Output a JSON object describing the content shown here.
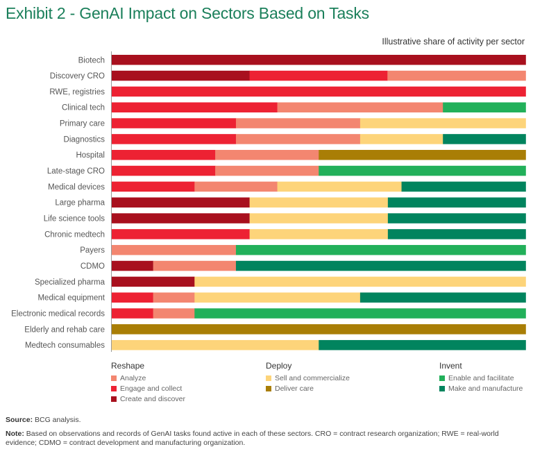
{
  "title": "Exhibit 2 - GenAI Impact on Sectors Based on Tasks",
  "subtitle": "Illustrative share of activity per sector",
  "chart_data": {
    "type": "bar",
    "orientation": "horizontal",
    "stacked": true,
    "normalized": true,
    "title": "Exhibit 2 - GenAI Impact on Sectors Based on Tasks",
    "xlabel": "Illustrative share of activity per sector",
    "ylabel": "",
    "xlim": [
      0,
      1
    ],
    "grid": false,
    "legend_position": "bottom",
    "categories": [
      "Biotech",
      "Discovery CRO",
      "RWE, registries",
      "Clinical tech",
      "Primary care",
      "Diagnostics",
      "Hospital",
      "Late-stage CRO",
      "Medical devices",
      "Large pharma",
      "Life science tools",
      "Chronic medtech",
      "Payers",
      "CDMO",
      "Specialized pharma",
      "Medical equipment",
      "Electronic medical records",
      "Elderly and rehab care",
      "Medtech consumables"
    ],
    "series": [
      {
        "name": "Create and discover",
        "group": "Reshape",
        "color": "#A8101E",
        "values": [
          1.0,
          0.333,
          0,
          0,
          0,
          0,
          0,
          0,
          0,
          0.333,
          0.333,
          0,
          0,
          0.1,
          0.2,
          0,
          0,
          0,
          0
        ]
      },
      {
        "name": "Engage and collect",
        "group": "Reshape",
        "color": "#ED2233",
        "values": [
          0,
          0.333,
          1.0,
          0.4,
          0.3,
          0.3,
          0.25,
          0.25,
          0.2,
          0,
          0,
          0.333,
          0,
          0,
          0,
          0.1,
          0.1,
          0,
          0
        ]
      },
      {
        "name": "Analyze",
        "group": "Reshape",
        "color": "#F38670",
        "values": [
          0,
          0.334,
          0,
          0.4,
          0.3,
          0.3,
          0.25,
          0.25,
          0.2,
          0,
          0,
          0,
          0.3,
          0.2,
          0,
          0.1,
          0.1,
          0,
          0
        ]
      },
      {
        "name": "Sell and commercialize",
        "group": "Deploy",
        "color": "#FDD47A",
        "values": [
          0,
          0,
          0,
          0,
          0.4,
          0.2,
          0,
          0,
          0.3,
          0.334,
          0.334,
          0.334,
          0,
          0,
          0.8,
          0.4,
          0,
          0,
          0.5
        ]
      },
      {
        "name": "Deliver care",
        "group": "Deploy",
        "color": "#A97E06",
        "values": [
          0,
          0,
          0,
          0,
          0,
          0,
          0.5,
          0,
          0,
          0,
          0,
          0,
          0,
          0,
          0,
          0,
          0,
          1.0,
          0
        ]
      },
      {
        "name": "Enable and facilitate",
        "group": "Invent",
        "color": "#22B05A",
        "values": [
          0,
          0,
          0,
          0.2,
          0,
          0,
          0,
          0.5,
          0,
          0,
          0,
          0,
          0.7,
          0,
          0,
          0,
          0.8,
          0,
          0
        ]
      },
      {
        "name": "Make and manufacture",
        "group": "Invent",
        "color": "#01845E",
        "values": [
          0,
          0,
          0,
          0,
          0,
          0.2,
          0,
          0,
          0.3,
          0.333,
          0.333,
          0.333,
          0,
          0.7,
          0,
          0.4,
          0,
          0,
          0.5
        ]
      }
    ]
  },
  "legend": {
    "groups": [
      {
        "label": "Reshape",
        "items": [
          {
            "label": "Analyze",
            "color": "#F38670"
          },
          {
            "label": "Engage and collect",
            "color": "#ED2233"
          },
          {
            "label": "Create and discover",
            "color": "#A8101E"
          }
        ]
      },
      {
        "label": "Deploy",
        "items": [
          {
            "label": "Sell and commercialize",
            "color": "#FDD47A"
          },
          {
            "label": "Deliver care",
            "color": "#A97E06"
          }
        ]
      },
      {
        "label": "Invent",
        "items": [
          {
            "label": "Enable and facilitate",
            "color": "#22B05A"
          },
          {
            "label": "Make and manufacture",
            "color": "#01845E"
          }
        ]
      }
    ]
  },
  "footer": {
    "source_label": "Source:",
    "source_text": " BCG analysis.",
    "note_label": "Note:",
    "note_text": " Based on observations and records of GenAI tasks found active in each of these sectors. CRO = contract research organization; RWE = real-world evidence; CDMO = contract development and manufacturing organization."
  },
  "colors": {
    "title": "#1a7f5a"
  }
}
